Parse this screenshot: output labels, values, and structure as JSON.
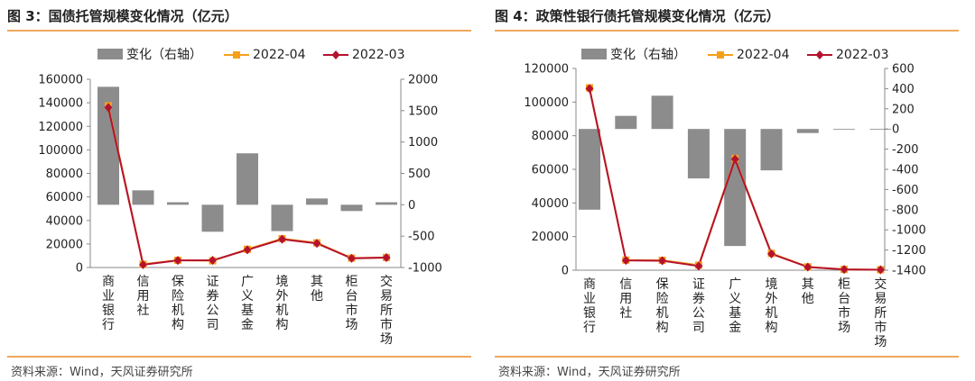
{
  "colors": {
    "bar": "#8c8c8c",
    "line": "#b5122d",
    "marker_2022_04": "#f5a01a",
    "marker_2022_03": "#b5122d",
    "rule": "#f0a85c"
  },
  "charts": [
    {
      "title": "图 3：国债托管规模变化情况（亿元）",
      "source": "资料来源：Wind，天风证券研究所",
      "chart_data": {
        "type": "bar+line",
        "categories": [
          "商业银行",
          "信用社",
          "保险机构",
          "证券公司",
          "广义基金",
          "境外机构",
          "其他",
          "柜台市场",
          "交易所市场"
        ],
        "legend": [
          "变化（右轴）",
          "2022-04",
          "2022-03"
        ],
        "legend_position": "top",
        "y_left": {
          "min": 0,
          "max": 160000,
          "step": 20000
        },
        "y_right": {
          "min": -1000,
          "max": 2000,
          "step": 500
        },
        "series": [
          {
            "name": "变化（右轴）",
            "type": "bar",
            "axis": "right",
            "values": [
              1880,
              230,
              40,
              -430,
              820,
              -420,
              100,
              -100,
              40
            ]
          },
          {
            "name": "2022-04",
            "type": "line",
            "axis": "left",
            "values": [
              137500,
              2800,
              6200,
              5700,
              15500,
              24500,
              21000,
              8000,
              8500
            ]
          },
          {
            "name": "2022-03",
            "type": "line",
            "axis": "left",
            "values": [
              136000,
              2400,
              6000,
              6100,
              15000,
              24000,
              20500,
              7800,
              8400
            ]
          }
        ]
      }
    },
    {
      "title": "图 4：政策性银行债托管规模变化情况（亿元）",
      "source": "资料来源：Wind，天风证券研究所",
      "chart_data": {
        "type": "bar+line",
        "categories": [
          "商业银行",
          "信用社",
          "保险机构",
          "证券公司",
          "广义基金",
          "境外机构",
          "其他",
          "柜台市场",
          "交易所市场"
        ],
        "legend": [
          "变化（右轴）",
          "2022-04",
          "2022-03"
        ],
        "legend_position": "top",
        "y_left": {
          "min": 0,
          "max": 120000,
          "step": 20000
        },
        "y_right": {
          "min": -1400,
          "max": 600,
          "step": 200
        },
        "series": [
          {
            "name": "变化（右轴）",
            "type": "bar",
            "axis": "right",
            "values": [
              -800,
              130,
              330,
              -490,
              -1160,
              -410,
              -40,
              -5,
              0
            ]
          },
          {
            "name": "2022-04",
            "type": "line",
            "axis": "left",
            "values": [
              108500,
              6000,
              5900,
              3000,
              66500,
              10000,
              2000,
              500,
              300
            ]
          },
          {
            "name": "2022-03",
            "type": "line",
            "axis": "left",
            "values": [
              108000,
              5800,
              5600,
              2500,
              66000,
              9700,
              1900,
              500,
              300
            ]
          }
        ]
      }
    }
  ]
}
